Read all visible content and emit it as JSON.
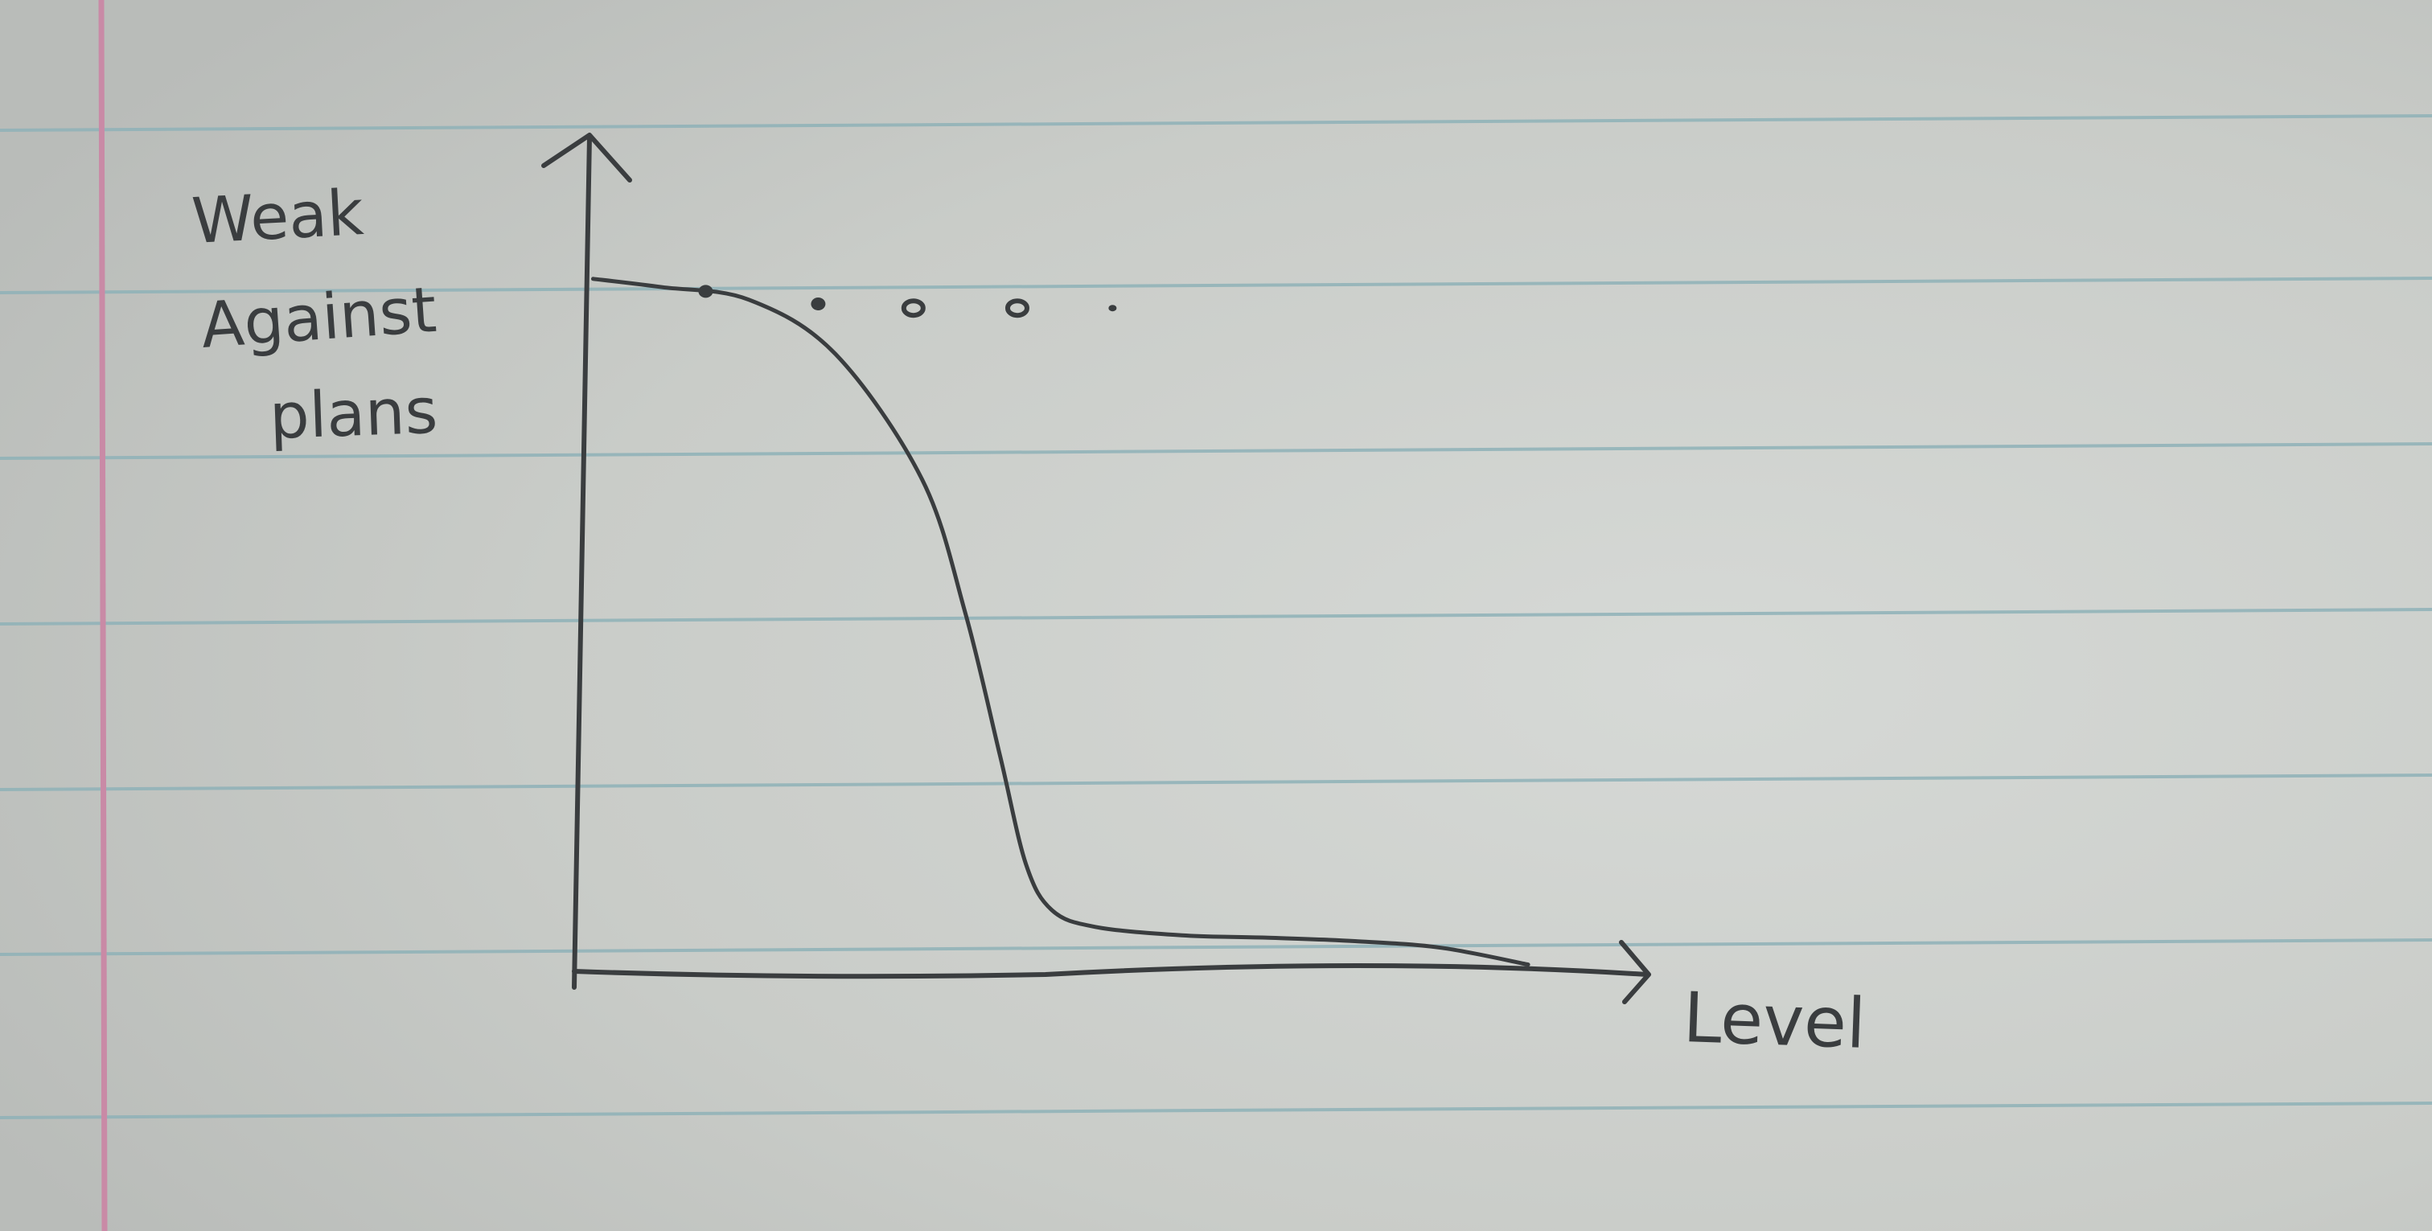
{
  "chart_data": {
    "type": "line",
    "title": "",
    "ylabel": [
      "Weak",
      "Against",
      "plans"
    ],
    "xlabel": "Level",
    "x": [
      0.2,
      1.0,
      2.0,
      3.0,
      4.0,
      4.5,
      4.9,
      5.2,
      5.5,
      6.0,
      7.0,
      8.0,
      9.0,
      10.0,
      11.0
    ],
    "y": [
      8.3,
      8.2,
      8.05,
      7.4,
      5.9,
      4.3,
      2.6,
      1.3,
      0.75,
      0.55,
      0.45,
      0.42,
      0.38,
      0.3,
      0.1
    ],
    "markers": [
      {
        "x": 1.5,
        "y": 8.15,
        "style": "filled"
      },
      {
        "x": 2.8,
        "y": 8.0,
        "style": "filled"
      },
      {
        "x": 3.9,
        "y": 7.95,
        "style": "open"
      },
      {
        "x": 5.1,
        "y": 7.95,
        "style": "open"
      },
      {
        "x": 6.2,
        "y": 7.95,
        "style": "dot"
      }
    ],
    "xlim": [
      0,
      12.3
    ],
    "ylim": [
      0,
      10
    ],
    "axis_ticks": "none",
    "grid": false,
    "legend": "none",
    "colors": {
      "ink": "#3a3d3f",
      "paper": "#c9ccc8",
      "rule_line": "#8fb2b8",
      "margin_line": "#c98aa6"
    }
  }
}
